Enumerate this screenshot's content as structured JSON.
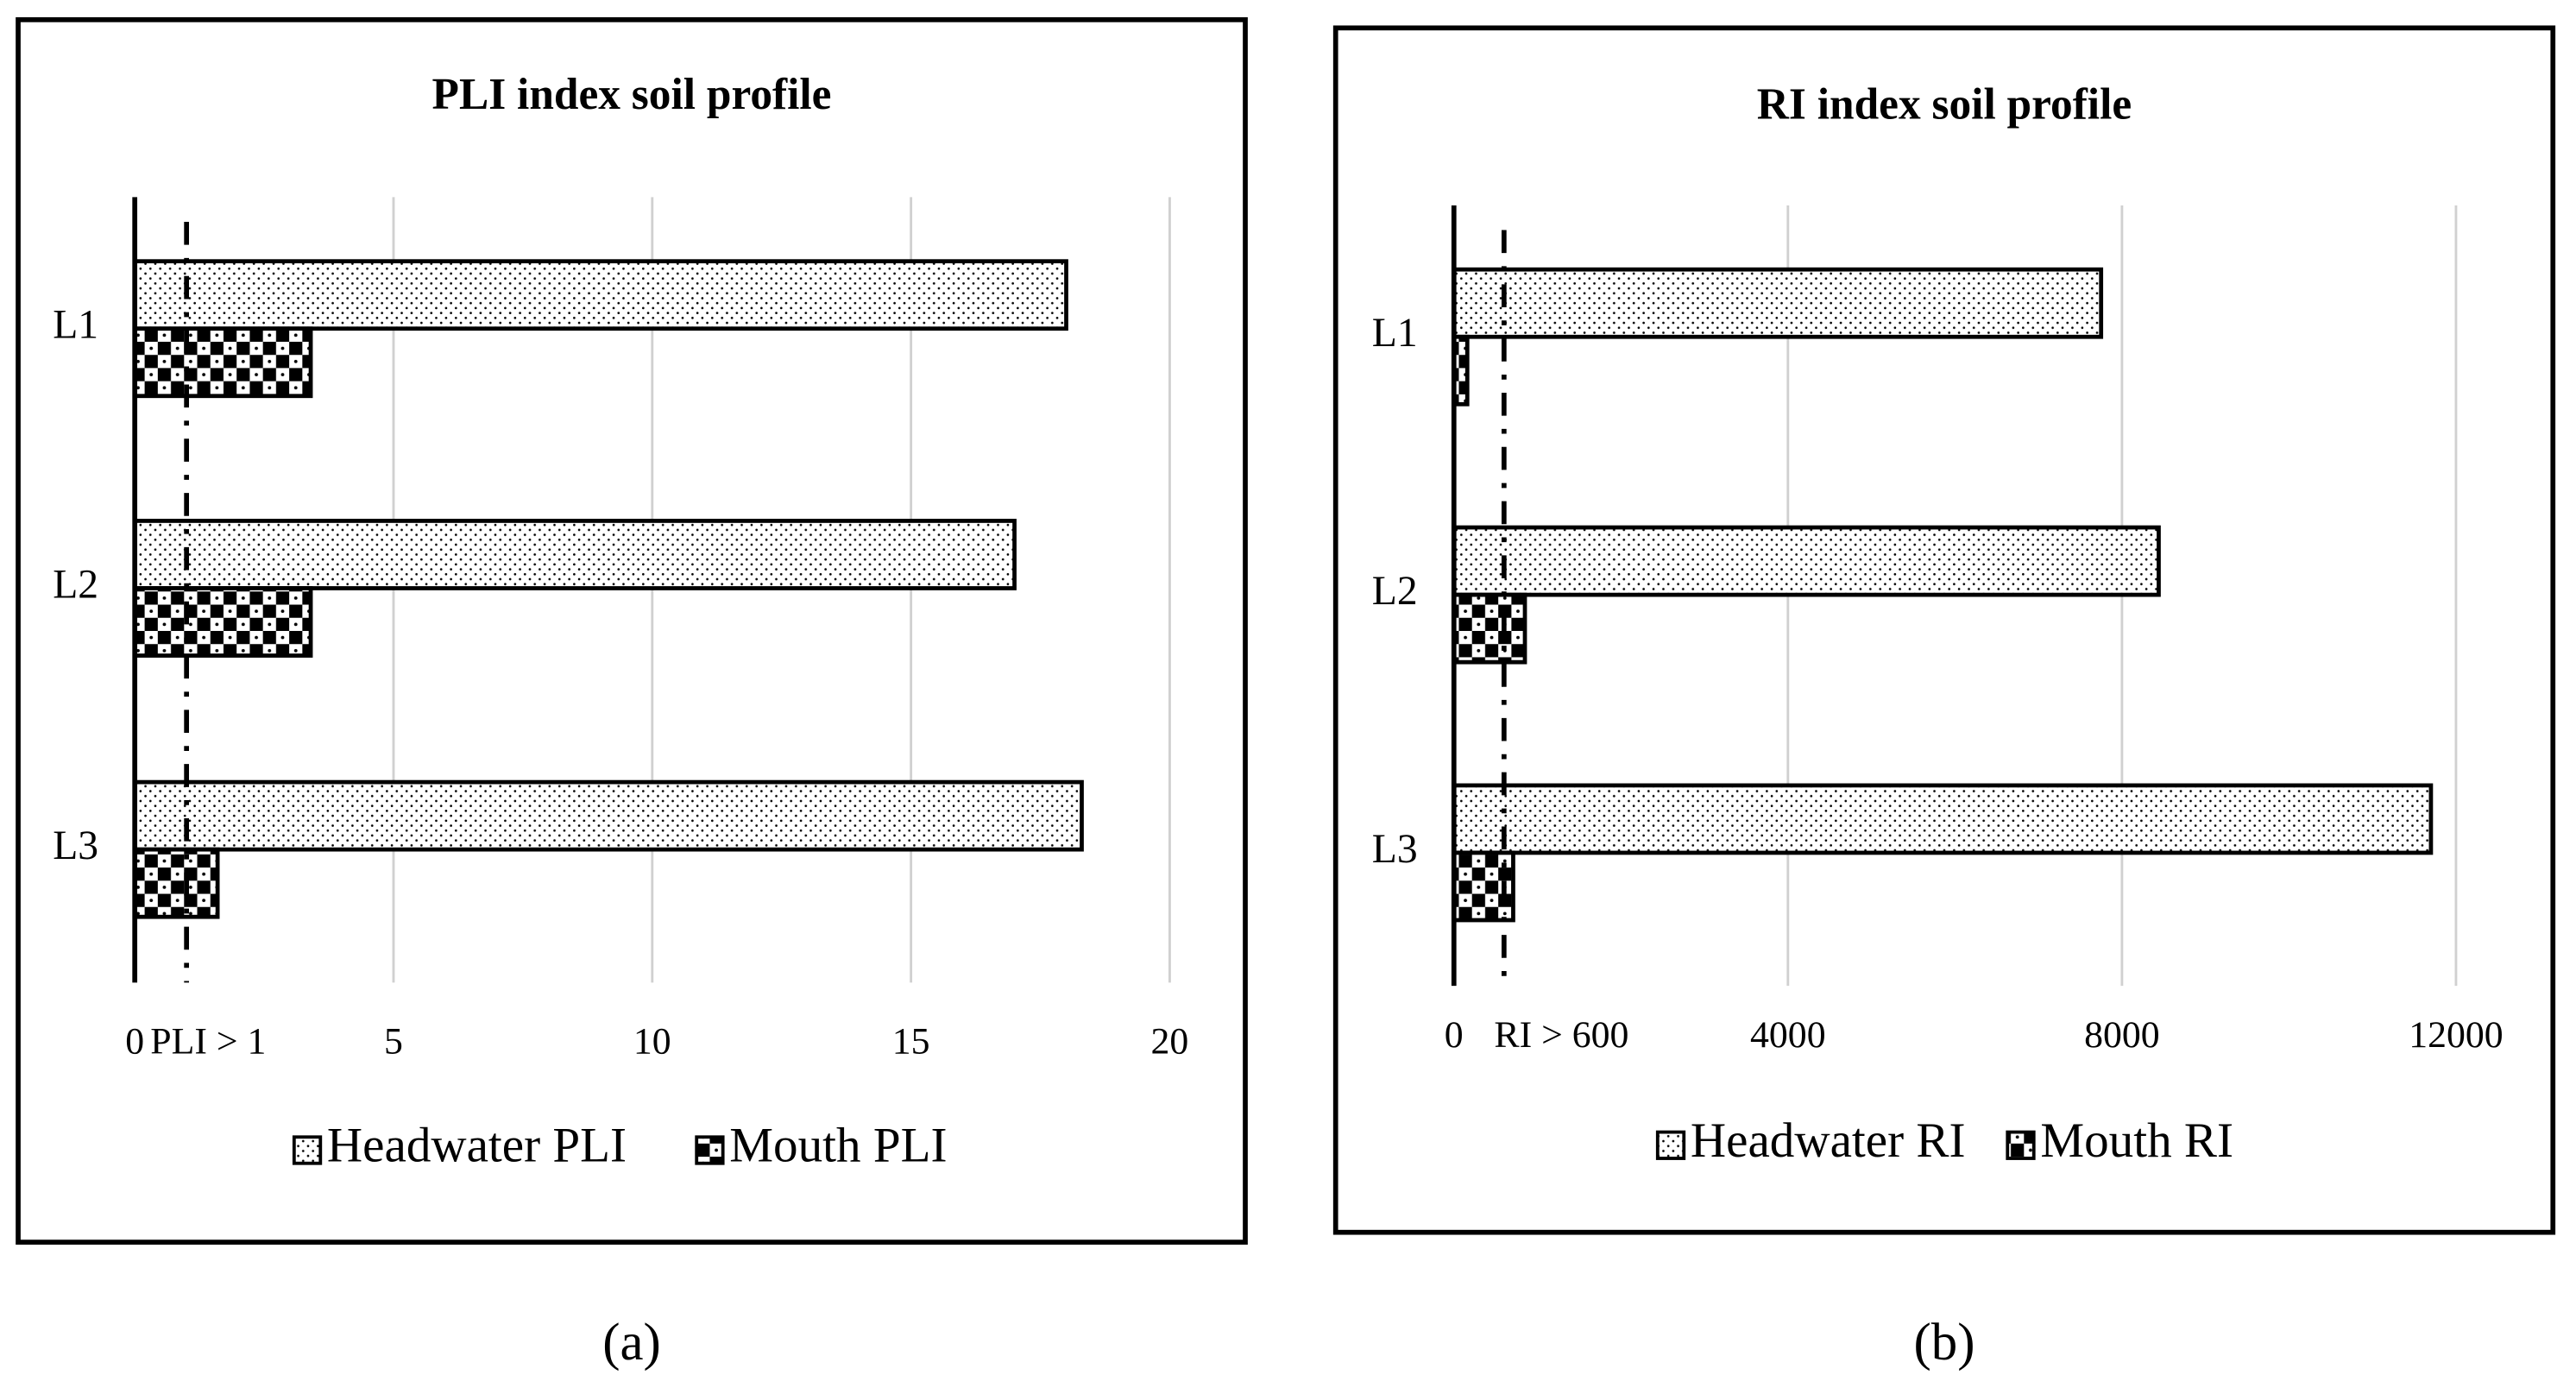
{
  "chart_data": [
    {
      "type": "bar",
      "orientation": "horizontal",
      "title": "PLI index soil profile",
      "categories": [
        "L1",
        "L2",
        "L3"
      ],
      "series": [
        {
          "name": "Headwater PLI",
          "pattern": "dots",
          "values": [
            18.0,
            17.0,
            18.3
          ]
        },
        {
          "name": "Mouth PLI",
          "pattern": "checker",
          "values": [
            3.4,
            3.4,
            1.6
          ]
        }
      ],
      "xlim": [
        0,
        20
      ],
      "xticks": [
        0,
        5,
        10,
        15,
        20
      ],
      "grid": true,
      "threshold": {
        "value": 1,
        "label": "PLI > 1"
      },
      "legend": "bottom",
      "caption": "(a)"
    },
    {
      "type": "bar",
      "orientation": "horizontal",
      "title": "RI index soil profile",
      "categories": [
        "L1",
        "L2",
        "L3"
      ],
      "series": [
        {
          "name": "Headwater RI",
          "pattern": "dots",
          "values": [
            7750,
            8440,
            11700
          ]
        },
        {
          "name": "Mouth RI",
          "pattern": "checker",
          "values": [
            160,
            850,
            710
          ]
        }
      ],
      "xlim": [
        0,
        12000
      ],
      "xticks": [
        0,
        4000,
        8000,
        12000
      ],
      "grid": true,
      "threshold": {
        "value": 600,
        "label": "RI > 600"
      },
      "legend": "bottom",
      "caption": "(b)"
    }
  ]
}
